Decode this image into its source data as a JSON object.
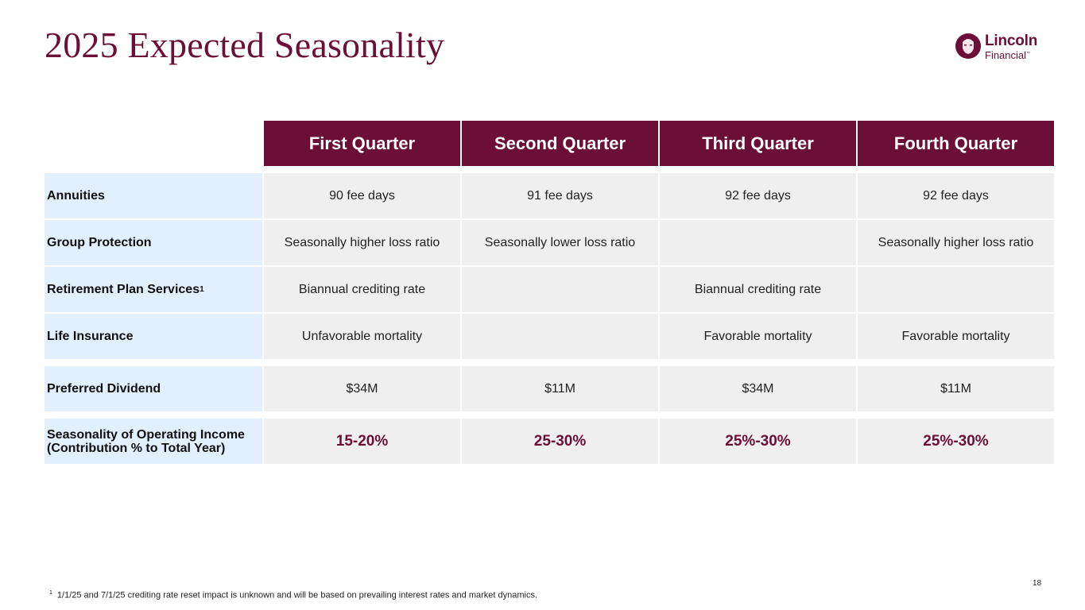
{
  "title": "2025 Expected Seasonality",
  "logo": {
    "name": "Lincoln",
    "sub": "Financial",
    "tm": "™"
  },
  "headers": [
    "First Quarter",
    "Second Quarter",
    "Third Quarter",
    "Fourth Quarter"
  ],
  "rows": [
    {
      "label": "Annuities",
      "cells": [
        "90 fee days",
        "91 fee days",
        "92 fee days",
        "92 fee days"
      ]
    },
    {
      "label": "Group Protection",
      "cells": [
        "Seasonally higher loss ratio",
        "Seasonally lower loss ratio",
        "",
        "Seasonally higher loss ratio"
      ]
    },
    {
      "label": "Retirement Plan Services",
      "label_sup": "1",
      "cells": [
        "Biannual crediting rate",
        "",
        "Biannual crediting rate",
        ""
      ]
    },
    {
      "label": "Life Insurance",
      "cells": [
        "Unfavorable mortality",
        "",
        "Favorable mortality",
        "Favorable mortality"
      ]
    },
    {
      "label": "Preferred Dividend",
      "cells": [
        "$34M",
        "$11M",
        "$34M",
        "$11M"
      ]
    },
    {
      "label_line1": "Seasonality of Operating Income",
      "label_line2": "(Contribution % to Total Year)",
      "cells": [
        "15-20%",
        "25-30%",
        "25%-30%",
        "25%-30%"
      ]
    }
  ],
  "page_number": "18",
  "footnote": {
    "marker": "1",
    "text": "1/1/25 and 7/1/25 crediting rate reset impact is unknown and will be based on prevailing interest rates and market dynamics."
  },
  "colors": {
    "brand": "#6b0f36",
    "label_bg": "#e1efff",
    "cell_bg": "#efefef"
  }
}
